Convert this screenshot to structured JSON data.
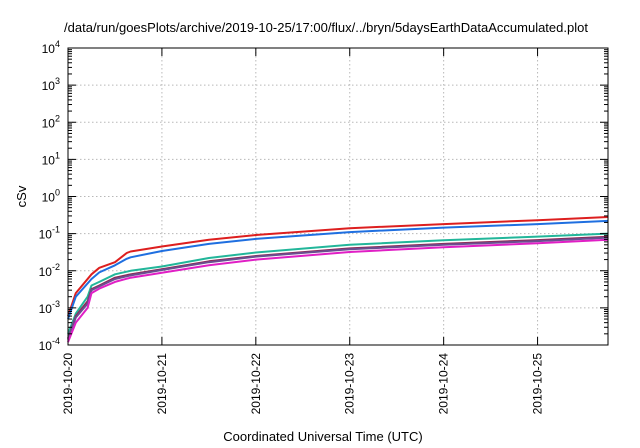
{
  "chart_data": {
    "type": "line",
    "title": "/data/run/goesPlots/archive/2019-10-25/17:00/flux/../bryn/5daysEarthDataAccumulated.plot",
    "xlabel": "Coordinated Universal Time (UTC)",
    "ylabel": "cSv",
    "y_scale": "log",
    "ylim": [
      0.0001,
      10000
    ],
    "xlim": [
      "2019-10-20T00:00",
      "2019-10-25T18:00"
    ],
    "x_ticks": [
      "2019-10-20",
      "2019-10-21",
      "2019-10-22",
      "2019-10-23",
      "2019-10-24",
      "2019-10-25"
    ],
    "y_ticks": [
      {
        "base": "10",
        "exp": "-4",
        "value": 0.0001
      },
      {
        "base": "10",
        "exp": "-3",
        "value": 0.001
      },
      {
        "base": "10",
        "exp": "-2",
        "value": 0.01
      },
      {
        "base": "10",
        "exp": "-1",
        "value": 0.1
      },
      {
        "base": "10",
        "exp": "0",
        "value": 1
      },
      {
        "base": "10",
        "exp": "1",
        "value": 10
      },
      {
        "base": "10",
        "exp": "2",
        "value": 100
      },
      {
        "base": "10",
        "exp": "3",
        "value": 1000
      },
      {
        "base": "10",
        "exp": "4",
        "value": 10000
      }
    ],
    "grid": true,
    "series": [
      {
        "color": "#dd1f1f",
        "x": [
          "2019-10-20T00:00",
          "2019-10-20T02:00",
          "2019-10-20T06:00",
          "2019-10-20T08:00",
          "2019-10-20T12:00",
          "2019-10-20T15:00",
          "2019-10-20T16:00",
          "2019-10-21T00:00",
          "2019-10-21T12:00",
          "2019-10-22T00:00",
          "2019-10-23T00:00",
          "2019-10-24T00:00",
          "2019-10-25T00:00",
          "2019-10-25T18:00"
        ],
        "y": [
          0.0006,
          0.0025,
          0.008,
          0.012,
          0.017,
          0.03,
          0.033,
          0.045,
          0.068,
          0.092,
          0.14,
          0.18,
          0.23,
          0.28
        ]
      },
      {
        "color": "#1f6fe0",
        "x": [
          "2019-10-20T00:00",
          "2019-10-20T02:00",
          "2019-10-20T06:00",
          "2019-10-20T08:00",
          "2019-10-20T12:00",
          "2019-10-20T15:00",
          "2019-10-20T16:00",
          "2019-10-21T00:00",
          "2019-10-21T12:00",
          "2019-10-22T00:00",
          "2019-10-23T00:00",
          "2019-10-24T00:00",
          "2019-10-25T00:00",
          "2019-10-25T18:00"
        ],
        "y": [
          0.0005,
          0.002,
          0.006,
          0.009,
          0.014,
          0.021,
          0.023,
          0.034,
          0.053,
          0.072,
          0.11,
          0.145,
          0.18,
          0.22
        ]
      },
      {
        "color": "#22b69a",
        "x": [
          "2019-10-20T00:00",
          "2019-10-20T02:00",
          "2019-10-20T05:00",
          "2019-10-20T06:00",
          "2019-10-20T08:00",
          "2019-10-20T12:00",
          "2019-10-20T16:00",
          "2019-10-21T00:00",
          "2019-10-21T12:00",
          "2019-10-22T00:00",
          "2019-10-23T00:00",
          "2019-10-24T00:00",
          "2019-10-25T00:00",
          "2019-10-25T18:00"
        ],
        "y": [
          0.0002,
          0.0007,
          0.002,
          0.004,
          0.005,
          0.008,
          0.01,
          0.013,
          0.022,
          0.031,
          0.05,
          0.066,
          0.083,
          0.1
        ]
      },
      {
        "color": "#8e2a55",
        "x": [
          "2019-10-20T00:00",
          "2019-10-20T02:00",
          "2019-10-20T05:00",
          "2019-10-20T06:00",
          "2019-10-20T08:00",
          "2019-10-20T12:00",
          "2019-10-20T16:00",
          "2019-10-21T00:00",
          "2019-10-21T12:00",
          "2019-10-22T00:00",
          "2019-10-23T00:00",
          "2019-10-24T00:00",
          "2019-10-25T00:00",
          "2019-10-25T18:00"
        ],
        "y": [
          0.00015,
          0.0006,
          0.0015,
          0.0032,
          0.004,
          0.0065,
          0.008,
          0.011,
          0.018,
          0.025,
          0.04,
          0.053,
          0.067,
          0.082
        ]
      },
      {
        "color": "#6a4e90",
        "x": [
          "2019-10-20T00:00",
          "2019-10-20T02:00",
          "2019-10-20T05:00",
          "2019-10-20T06:00",
          "2019-10-20T08:00",
          "2019-10-20T12:00",
          "2019-10-20T16:00",
          "2019-10-21T00:00",
          "2019-10-21T12:00",
          "2019-10-22T00:00",
          "2019-10-23T00:00",
          "2019-10-24T00:00",
          "2019-10-25T00:00",
          "2019-10-25T18:00"
        ],
        "y": [
          0.00014,
          0.00055,
          0.0013,
          0.003,
          0.0038,
          0.006,
          0.0075,
          0.0105,
          0.017,
          0.024,
          0.038,
          0.05,
          0.063,
          0.078
        ]
      },
      {
        "color": "#e01fc5",
        "x": [
          "2019-10-20T00:00",
          "2019-10-20T02:00",
          "2019-10-20T05:00",
          "2019-10-20T06:00",
          "2019-10-20T08:00",
          "2019-10-20T12:00",
          "2019-10-20T16:00",
          "2019-10-21T00:00",
          "2019-10-21T12:00",
          "2019-10-22T00:00",
          "2019-10-23T00:00",
          "2019-10-24T00:00",
          "2019-10-25T00:00",
          "2019-10-25T18:00"
        ],
        "y": [
          0.00012,
          0.0004,
          0.001,
          0.0025,
          0.0033,
          0.005,
          0.0065,
          0.0088,
          0.014,
          0.02,
          0.032,
          0.043,
          0.055,
          0.068
        ]
      }
    ]
  }
}
